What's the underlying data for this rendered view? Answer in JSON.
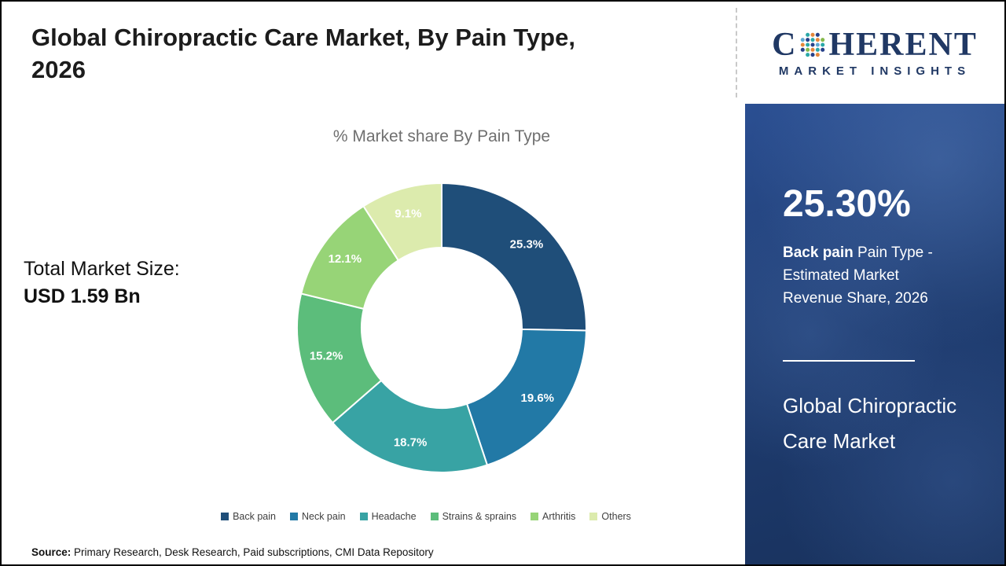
{
  "header": {
    "title_line1": "Global Chiropractic Care Market, By Pain Type,",
    "title_line2": "2026"
  },
  "logo": {
    "prefix": "C",
    "suffix": "HERENT",
    "tagline": "MARKET INSIGHTS"
  },
  "left_panel": {
    "total_label": "Total Market Size:",
    "total_value": "USD 1.59 Bn"
  },
  "chart_data": {
    "type": "pie",
    "subtype": "donut",
    "title": "% Market share By Pain Type",
    "categories": [
      "Back pain",
      "Neck pain",
      "Headache",
      "Strains & sprains",
      "Arthritis",
      "Others"
    ],
    "values": [
      25.3,
      19.6,
      18.7,
      15.2,
      12.1,
      9.1
    ],
    "colors": [
      "#1f4e79",
      "#2279a6",
      "#38a3a4",
      "#5cbd7b",
      "#97d477",
      "#dcebad"
    ],
    "unit": "%",
    "start_angle": -90,
    "direction": "clockwise",
    "legend_position": "bottom"
  },
  "sidebar": {
    "stat_value": "25.30%",
    "stat_bold": "Back pain",
    "stat_rest": " Pain Type - Estimated Market Revenue Share, 2026",
    "panel_title": "Global Chiropractic Care Market"
  },
  "footer": {
    "source_label": "Source:",
    "source_text": " Primary Research, Desk Research, Paid subscriptions, CMI Data Repository"
  }
}
